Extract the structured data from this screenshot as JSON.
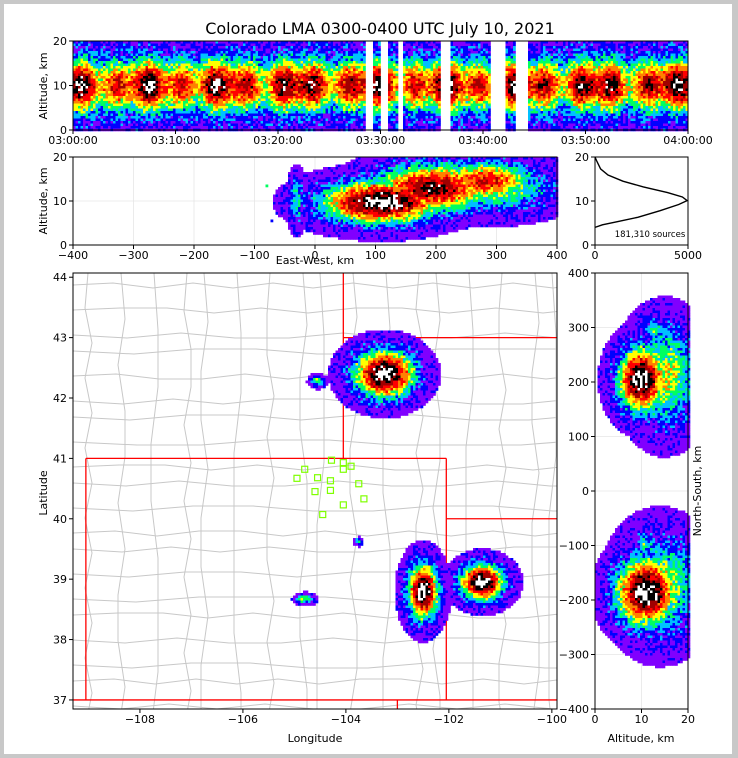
{
  "title": "Colorado LMA 0300-0400 UTC July 10, 2021",
  "colors": {
    "state_border": "#ff0000",
    "county_border": "#c8c8c8",
    "station_marker": "#7fff00",
    "density_scale": [
      "#8000ff",
      "#0000ff",
      "#00c0ff",
      "#00ff60",
      "#ffff00",
      "#ff8000",
      "#ff0000",
      "#a00000",
      "#000000",
      "#ffffff"
    ]
  },
  "chart_data": [
    {
      "name": "time-height",
      "type": "heatmap",
      "ylabel": "Altitude, km",
      "xlabel": "",
      "yticks": [
        "0",
        "10",
        "20"
      ],
      "xticks": [
        "03:00:00",
        "03:10:00",
        "03:20:00",
        "03:30:00",
        "03:40:00",
        "03:50:00",
        "04:00:00"
      ],
      "ylim": [
        0,
        20
      ],
      "xlim_minutes": [
        0,
        60
      ],
      "activity_minutes": [
        [
          0,
          28.5
        ],
        [
          29.3,
          30
        ],
        [
          30.8,
          31.6
        ],
        [
          32.2,
          35.9
        ],
        [
          36.8,
          40.8
        ],
        [
          42.2,
          43.1
        ],
        [
          44.5,
          60
        ]
      ],
      "core_altitude_km": 10
    },
    {
      "name": "east-west-altitude",
      "type": "heatmap",
      "ylabel": "Altitude, km",
      "xlabel": "East-West, km",
      "xticks": [
        "−400",
        "−300",
        "−200",
        "−100",
        "0",
        "100",
        "200",
        "300",
        "400"
      ],
      "yticks": [
        "0",
        "10",
        "20"
      ],
      "xlim": [
        -400,
        400
      ],
      "ylim": [
        0,
        20
      ]
    },
    {
      "name": "altitude-histogram",
      "type": "line",
      "xlabel": "",
      "xticks": [
        "0",
        "5000"
      ],
      "yticks": [
        "0",
        "10",
        "20"
      ],
      "xlim": [
        0,
        5000
      ],
      "ylim": [
        0,
        20
      ],
      "annotation": "181,310 sources",
      "profile": [
        [
          0,
          4
        ],
        [
          400,
          4.6
        ],
        [
          1200,
          5.3
        ],
        [
          2300,
          6.3
        ],
        [
          3500,
          7.8
        ],
        [
          4500,
          9.2
        ],
        [
          4950,
          10.1
        ],
        [
          4700,
          10.9
        ],
        [
          3900,
          11.9
        ],
        [
          2600,
          13.2
        ],
        [
          1500,
          14.5
        ],
        [
          700,
          15.9
        ],
        [
          300,
          17.3
        ],
        [
          80,
          19.2
        ],
        [
          0,
          20
        ]
      ]
    },
    {
      "name": "plan-view",
      "type": "heatmap",
      "xlabel": "Longitude",
      "ylabel": "Latitude",
      "xticks": [
        "−108",
        "−106",
        "−104",
        "−102",
        "−100"
      ],
      "yticks": [
        "37",
        "38",
        "39",
        "40",
        "41",
        "42",
        "43",
        "44"
      ],
      "xlim": [
        -109.3,
        -99.9
      ],
      "ylim": [
        36.85,
        44.07
      ],
      "stations": [
        [
          -104.95,
          40.67
        ],
        [
          -104.8,
          40.82
        ],
        [
          -104.55,
          40.68
        ],
        [
          -104.3,
          40.63
        ],
        [
          -104.05,
          40.82
        ],
        [
          -103.9,
          40.87
        ],
        [
          -104.6,
          40.45
        ],
        [
          -104.3,
          40.47
        ],
        [
          -103.75,
          40.58
        ],
        [
          -103.65,
          40.33
        ],
        [
          -104.05,
          40.23
        ],
        [
          -104.45,
          40.07
        ],
        [
          -104.05,
          40.93
        ],
        [
          -104.28,
          40.97
        ]
      ],
      "cells": [
        {
          "lon": -103.25,
          "lat": 42.4,
          "rlon": 0.55,
          "rlat": 0.37
        },
        {
          "lon": -102.5,
          "lat": 38.8,
          "rlon": 0.28,
          "rlat": 0.43
        },
        {
          "lon": -101.35,
          "lat": 38.95,
          "rlon": 0.4,
          "rlat": 0.28
        },
        {
          "lon": -104.55,
          "lat": 42.28,
          "rlon": 0.12,
          "rlat": 0.08
        },
        {
          "lon": -104.8,
          "lat": 38.67,
          "rlon": 0.15,
          "rlat": 0.07
        },
        {
          "lon": -103.75,
          "lat": 39.62,
          "rlon": 0.06,
          "rlat": 0.05
        }
      ]
    },
    {
      "name": "altitude-north-south",
      "type": "heatmap",
      "xlabel": "Altitude, km",
      "ylabel": "North-South, km",
      "xticks": [
        "0",
        "10",
        "20"
      ],
      "yticks": [
        "−400",
        "−300",
        "−200",
        "−100",
        "0",
        "100",
        "200",
        "300",
        "400"
      ],
      "xlim": [
        0,
        20
      ],
      "ylim": [
        -400,
        400
      ]
    }
  ]
}
